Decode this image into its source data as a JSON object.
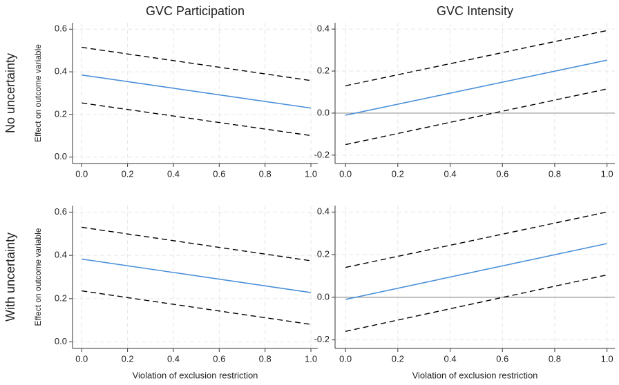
{
  "chart_data": [
    {
      "type": "line",
      "title": "GVC Participation",
      "row_label": "No uncertainty",
      "ylabel": "Effect on outcome variable",
      "x": [
        0,
        1
      ],
      "series": [
        {
          "color": "#000000",
          "style": "dashed",
          "values": [
            0.515,
            0.359
          ]
        },
        {
          "color": "#4a90d9",
          "style": "solid",
          "values": [
            0.385,
            0.23
          ]
        },
        {
          "color": "#000000",
          "style": "dashed",
          "values": [
            0.254,
            0.101
          ]
        }
      ],
      "xlim": [
        -0.04,
        1.03
      ],
      "ylim": [
        -0.03,
        0.63
      ],
      "xticks": [
        {
          "value": 0,
          "label": "0.0"
        },
        0.2,
        0.4,
        0.6,
        0.8,
        {
          "value": 1,
          "label": "1.0"
        }
      ],
      "yticks": [
        {
          "value": 0,
          "label": "0.0"
        },
        0.2,
        0.4,
        0.6
      ],
      "grid": true
    },
    {
      "type": "line",
      "title": "GVC Intensity",
      "x": [
        0,
        1
      ],
      "series": [
        {
          "color": "#000000",
          "style": "dashed",
          "values": [
            0.13,
            0.393
          ]
        },
        {
          "color": "#4a90d9",
          "style": "solid",
          "values": [
            -0.01,
            0.252
          ]
        },
        {
          "color": "#000000",
          "style": "dashed",
          "values": [
            -0.15,
            0.115
          ]
        }
      ],
      "xlim": [
        -0.04,
        1.03
      ],
      "ylim": [
        -0.24,
        0.43
      ],
      "hline": 0,
      "xticks": [
        {
          "value": 0,
          "label": "0.0"
        },
        0.2,
        0.4,
        0.6,
        0.8,
        {
          "value": 1,
          "label": "1.0"
        }
      ],
      "yticks": [
        -0.2,
        {
          "value": 0,
          "label": "0.0"
        },
        0.2,
        0.4
      ],
      "grid": true
    },
    {
      "type": "line",
      "row_label": "With uncertainty",
      "ylabel": "Effect on outcome variable",
      "xlabel": "Violation of exclusion restriction",
      "x": [
        0,
        1
      ],
      "series": [
        {
          "color": "#000000",
          "style": "dashed",
          "values": [
            0.53,
            0.375
          ]
        },
        {
          "color": "#4a90d9",
          "style": "solid",
          "values": [
            0.383,
            0.228
          ]
        },
        {
          "color": "#000000",
          "style": "dashed",
          "values": [
            0.236,
            0.081
          ]
        }
      ],
      "xlim": [
        -0.04,
        1.03
      ],
      "ylim": [
        -0.03,
        0.63
      ],
      "xticks": [
        {
          "value": 0,
          "label": "0.0"
        },
        0.2,
        0.4,
        0.6,
        0.8,
        {
          "value": 1,
          "label": "1.0"
        }
      ],
      "yticks": [
        {
          "value": 0,
          "label": "0.0"
        },
        0.2,
        0.4,
        0.6
      ],
      "grid": true
    },
    {
      "type": "line",
      "xlabel": "Violation of exclusion restriction",
      "x": [
        0,
        1
      ],
      "series": [
        {
          "color": "#000000",
          "style": "dashed",
          "values": [
            0.14,
            0.4
          ]
        },
        {
          "color": "#4a90d9",
          "style": "solid",
          "values": [
            -0.01,
            0.252
          ]
        },
        {
          "color": "#000000",
          "style": "dashed",
          "values": [
            -0.16,
            0.105
          ]
        }
      ],
      "xlim": [
        -0.04,
        1.03
      ],
      "ylim": [
        -0.24,
        0.43
      ],
      "hline": 0,
      "xticks": [
        {
          "value": 0,
          "label": "0.0"
        },
        0.2,
        0.4,
        0.6,
        0.8,
        {
          "value": 1,
          "label": "1.0"
        }
      ],
      "yticks": [
        -0.2,
        {
          "value": 0,
          "label": "0.0"
        },
        0.2,
        0.4
      ],
      "grid": true
    }
  ]
}
